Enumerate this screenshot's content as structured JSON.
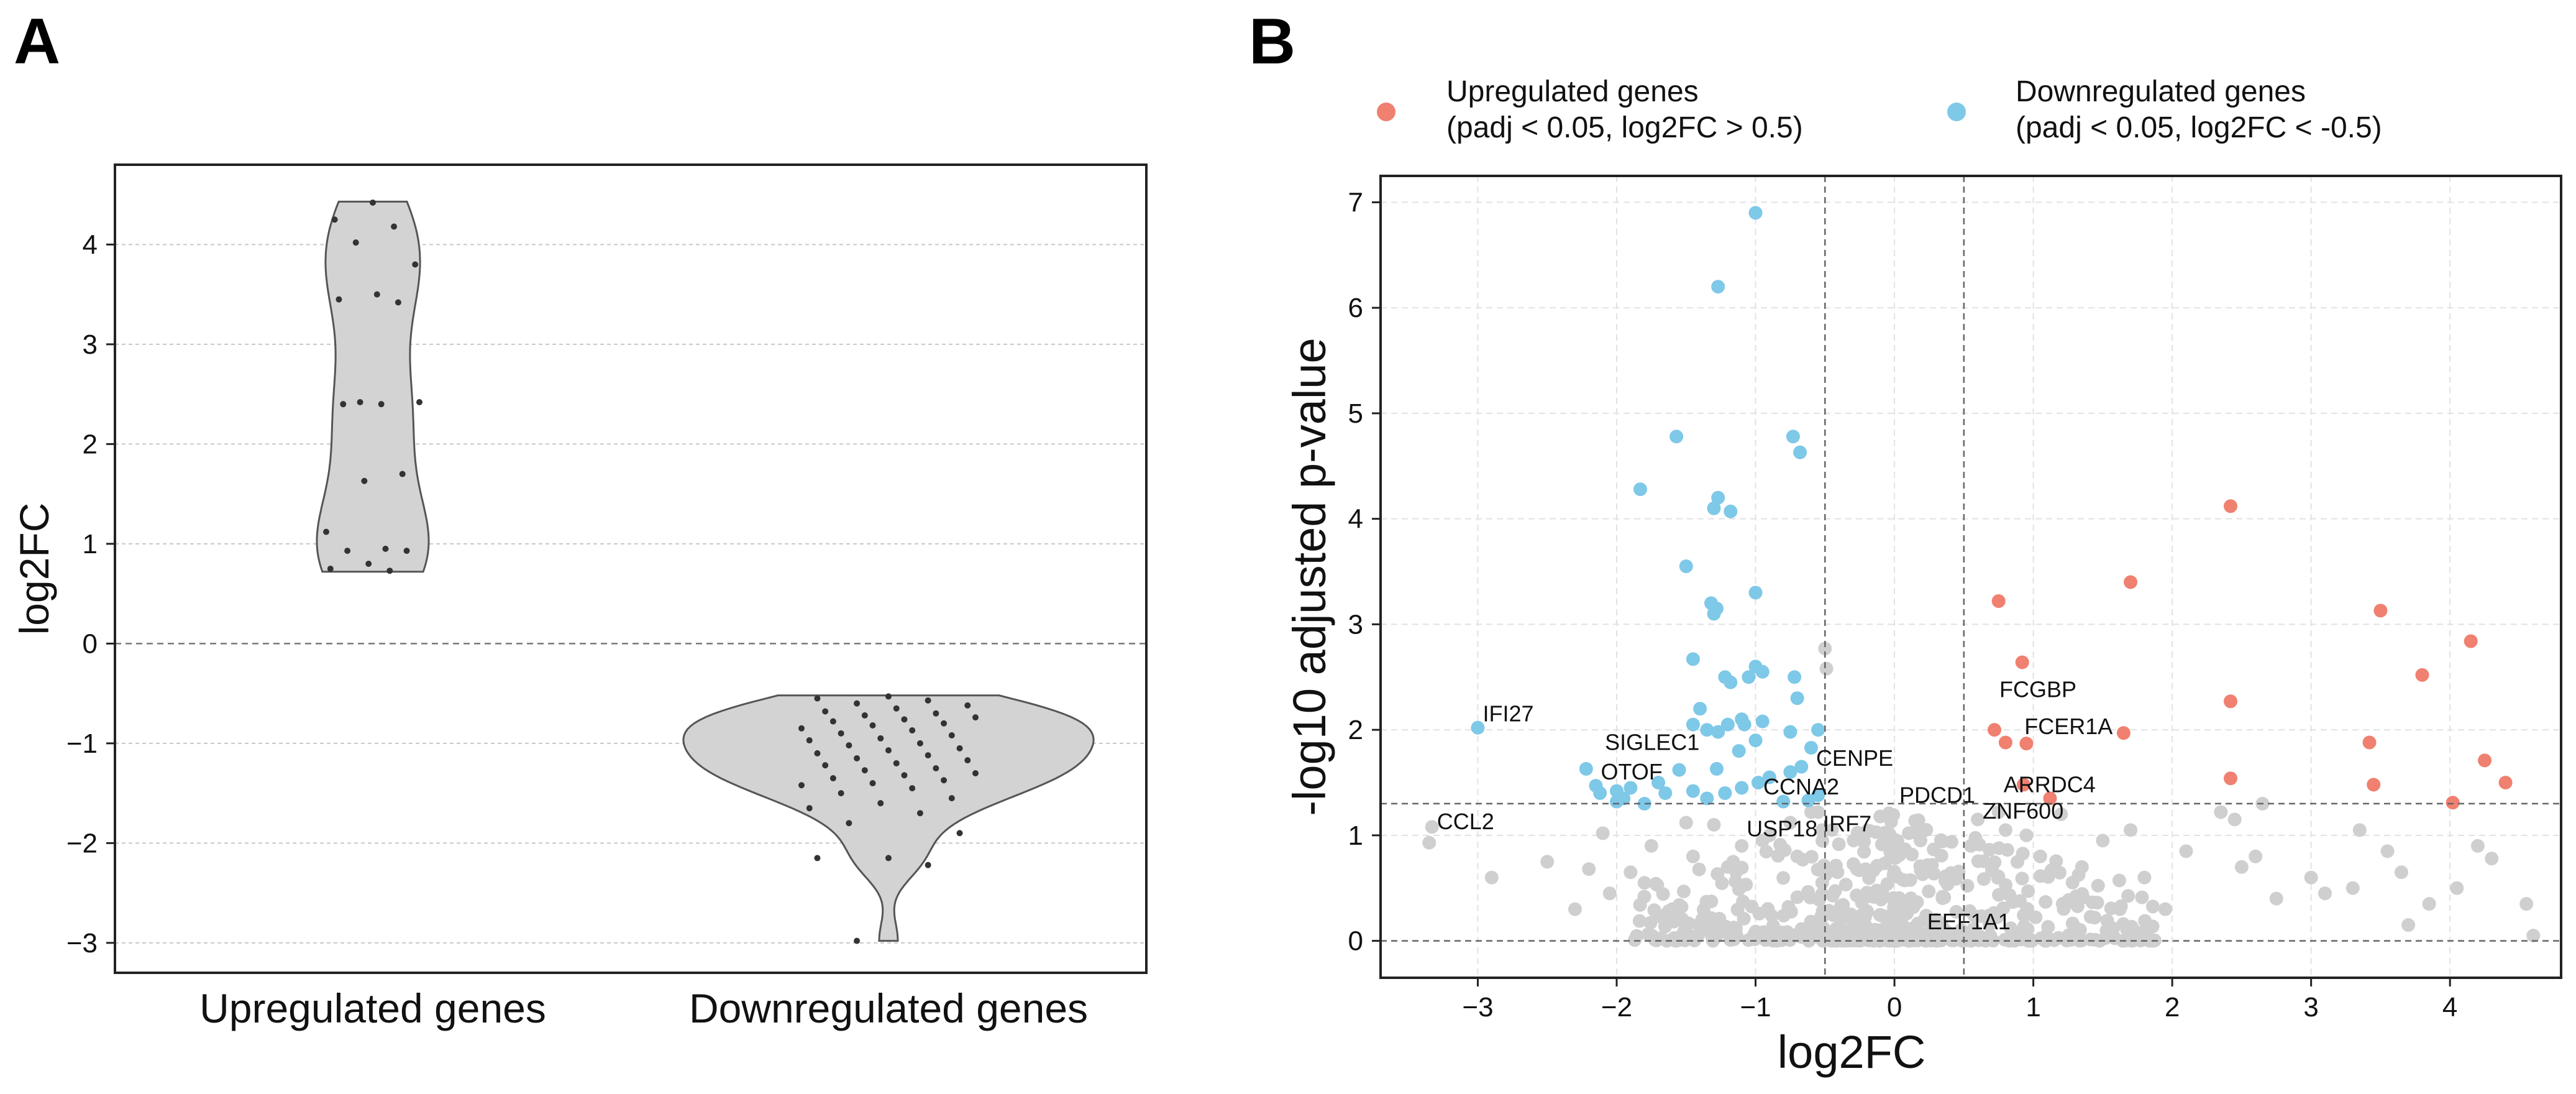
{
  "panels": {
    "a_label": "A",
    "b_label": "B"
  },
  "colors": {
    "up": "#f08070",
    "down": "#7ec8e8",
    "ns": "#cfcfcf",
    "violin": "#d3d3d3",
    "jitter": "#333333"
  },
  "chart_data": [
    {
      "type": "violin",
      "ylabel": "log2FC",
      "ylim": [
        -3.3,
        4.8
      ],
      "yticks": [
        4,
        3,
        2,
        1,
        0,
        -1,
        -2,
        -3
      ],
      "ytick_labels": [
        "4",
        "3",
        "2",
        "1",
        "0",
        "−1",
        "−2",
        "−3"
      ],
      "categories": [
        "Upregulated genes",
        "Downregulated genes"
      ],
      "reference_line": 0,
      "series": [
        {
          "name": "Upregulated genes",
          "values": [
            4.42,
            4.25,
            4.18,
            4.02,
            3.8,
            3.5,
            3.45,
            3.42,
            2.42,
            2.42,
            2.4,
            2.4,
            1.7,
            1.63,
            1.12,
            0.95,
            0.93,
            0.93,
            0.8,
            0.75,
            0.73
          ],
          "range": [
            0.72,
            4.43
          ]
        },
        {
          "name": "Downregulated genes",
          "values": [
            -0.53,
            -0.55,
            -0.57,
            -0.6,
            -0.62,
            -0.65,
            -0.68,
            -0.7,
            -0.72,
            -0.74,
            -0.76,
            -0.78,
            -0.8,
            -0.82,
            -0.85,
            -0.87,
            -0.9,
            -0.92,
            -0.95,
            -0.97,
            -1.0,
            -1.02,
            -1.05,
            -1.07,
            -1.1,
            -1.12,
            -1.15,
            -1.17,
            -1.2,
            -1.22,
            -1.25,
            -1.27,
            -1.3,
            -1.32,
            -1.35,
            -1.37,
            -1.4,
            -1.42,
            -1.45,
            -1.5,
            -1.55,
            -1.6,
            -1.65,
            -1.7,
            -1.8,
            -1.9,
            -2.15,
            -2.15,
            -2.22,
            -2.98
          ],
          "range": [
            -0.52,
            -2.98
          ]
        }
      ]
    },
    {
      "type": "scatter",
      "xlabel": "log2FC",
      "ylabel": "-log10 adjusted p-value",
      "xlim": [
        -3.7,
        4.8
      ],
      "ylim": [
        -0.35,
        7.25
      ],
      "xticks": [
        -3,
        -2,
        -1,
        0,
        1,
        2,
        3,
        4
      ],
      "xtick_labels": [
        "−3",
        "−2",
        "−1",
        "0",
        "1",
        "2",
        "3",
        "4"
      ],
      "yticks": [
        0,
        1,
        2,
        3,
        4,
        5,
        6,
        7
      ],
      "ytick_labels": [
        "0",
        "1",
        "2",
        "3",
        "4",
        "5",
        "6",
        "7"
      ],
      "vlines": [
        -0.5,
        0.5
      ],
      "hlines": [
        0,
        1.3
      ],
      "legend": [
        {
          "name": "Upregulated genes",
          "desc": "(padj < 0.05, log2FC > 0.5)"
        },
        {
          "name": "Downregulated genes",
          "desc": "(padj < 0.05, log2FC < -0.5)"
        }
      ],
      "up_points": [
        [
          2.42,
          4.12
        ],
        [
          1.7,
          3.4
        ],
        [
          0.75,
          3.22
        ],
        [
          3.5,
          3.13
        ],
        [
          4.15,
          2.84
        ],
        [
          0.92,
          2.64
        ],
        [
          3.8,
          2.52
        ],
        [
          2.42,
          2.27
        ],
        [
          0.72,
          2.0
        ],
        [
          1.65,
          1.97
        ],
        [
          0.8,
          1.88
        ],
        [
          0.95,
          1.87
        ],
        [
          3.42,
          1.88
        ],
        [
          4.25,
          1.71
        ],
        [
          2.42,
          1.54
        ],
        [
          0.93,
          1.48
        ],
        [
          3.45,
          1.48
        ],
        [
          4.4,
          1.5
        ],
        [
          1.12,
          1.35
        ],
        [
          4.02,
          1.31
        ]
      ],
      "down_points": [
        [
          -1.0,
          6.9
        ],
        [
          -1.27,
          6.2
        ],
        [
          -1.57,
          4.78
        ],
        [
          -0.73,
          4.78
        ],
        [
          -0.68,
          4.63
        ],
        [
          -1.83,
          4.28
        ],
        [
          -1.27,
          4.2
        ],
        [
          -1.3,
          4.1
        ],
        [
          -1.18,
          4.07
        ],
        [
          -1.5,
          3.55
        ],
        [
          -1.0,
          3.3
        ],
        [
          -1.32,
          3.2
        ],
        [
          -1.28,
          3.15
        ],
        [
          -1.3,
          3.1
        ],
        [
          -1.45,
          2.67
        ],
        [
          -1.0,
          2.6
        ],
        [
          -0.95,
          2.55
        ],
        [
          -1.05,
          2.5
        ],
        [
          -1.22,
          2.5
        ],
        [
          -1.18,
          2.45
        ],
        [
          -0.72,
          2.5
        ],
        [
          -0.7,
          2.3
        ],
        [
          -1.4,
          2.2
        ],
        [
          -1.1,
          2.1
        ],
        [
          -1.2,
          2.05
        ],
        [
          -1.45,
          2.05
        ],
        [
          -1.35,
          2.0
        ],
        [
          -1.27,
          1.98
        ],
        [
          -1.08,
          2.05
        ],
        [
          -0.95,
          2.08
        ],
        [
          -0.75,
          1.98
        ],
        [
          -0.55,
          2.0
        ],
        [
          -1.0,
          1.9
        ],
        [
          -1.12,
          1.8
        ],
        [
          -1.28,
          1.63
        ],
        [
          -1.55,
          1.62
        ],
        [
          -0.6,
          1.83
        ],
        [
          -0.67,
          1.65
        ],
        [
          -0.75,
          1.6
        ],
        [
          -0.9,
          1.55
        ],
        [
          -0.98,
          1.5
        ],
        [
          -1.1,
          1.45
        ],
        [
          -1.22,
          1.4
        ],
        [
          -1.35,
          1.35
        ],
        [
          -1.45,
          1.42
        ],
        [
          -1.65,
          1.4
        ],
        [
          -1.7,
          1.5
        ],
        [
          -1.9,
          1.45
        ],
        [
          -1.95,
          1.35
        ],
        [
          -2.0,
          1.42
        ],
        [
          -2.12,
          1.4
        ],
        [
          -2.15,
          1.47
        ],
        [
          -2.22,
          1.63
        ],
        [
          -1.8,
          1.3
        ],
        [
          -2.0,
          1.32
        ],
        [
          -0.8,
          1.32
        ],
        [
          -0.62,
          1.33
        ],
        [
          -0.55,
          1.38
        ],
        [
          -3.0,
          2.02
        ]
      ],
      "ns_points": [
        [
          -3.33,
          1.08
        ],
        [
          -3.35,
          0.93
        ],
        [
          -2.9,
          0.6
        ],
        [
          -2.5,
          0.75
        ],
        [
          -2.2,
          0.68
        ],
        [
          -2.05,
          0.45
        ],
        [
          -1.8,
          0.55
        ],
        [
          -1.6,
          0.3
        ],
        [
          -1.3,
          1.1
        ],
        [
          -1.1,
          0.9
        ],
        [
          -0.9,
          1.0
        ],
        [
          -0.7,
          0.8
        ],
        [
          -0.55,
          1.22
        ],
        [
          -0.52,
          1.05
        ],
        [
          -0.5,
          2.77
        ],
        [
          -0.49,
          2.58
        ],
        [
          -0.6,
          1.22
        ],
        [
          -0.75,
          1.12
        ],
        [
          -0.95,
          0.95
        ],
        [
          -1.2,
          0.7
        ],
        [
          -1.45,
          0.8
        ],
        [
          -1.5,
          1.12
        ],
        [
          -1.75,
          0.9
        ],
        [
          -1.9,
          0.65
        ],
        [
          -2.1,
          1.02
        ],
        [
          -2.3,
          0.3
        ],
        [
          -0.52,
          0.55
        ],
        [
          -0.45,
          1.05
        ],
        [
          0.1,
          0.05
        ],
        [
          0.3,
          0.2
        ],
        [
          0.55,
          0.9
        ],
        [
          0.6,
          1.15
        ],
        [
          0.75,
          1.22
        ],
        [
          0.8,
          1.05
        ],
        [
          0.95,
          1.0
        ],
        [
          1.05,
          0.8
        ],
        [
          1.2,
          1.2
        ],
        [
          1.35,
          0.7
        ],
        [
          1.5,
          0.95
        ],
        [
          1.7,
          1.05
        ],
        [
          1.8,
          0.6
        ],
        [
          1.95,
          0.3
        ],
        [
          2.1,
          0.85
        ],
        [
          2.35,
          1.22
        ],
        [
          2.45,
          1.15
        ],
        [
          2.5,
          0.7
        ],
        [
          2.6,
          0.8
        ],
        [
          2.75,
          0.4
        ],
        [
          3.0,
          0.6
        ],
        [
          3.1,
          0.45
        ],
        [
          3.3,
          0.5
        ],
        [
          3.55,
          0.85
        ],
        [
          3.7,
          0.15
        ],
        [
          3.85,
          0.35
        ],
        [
          4.05,
          0.5
        ],
        [
          4.3,
          0.78
        ],
        [
          4.55,
          0.35
        ],
        [
          4.6,
          0.05
        ],
        [
          2.65,
          1.3
        ],
        [
          3.35,
          1.05
        ],
        [
          3.65,
          0.65
        ],
        [
          4.2,
          0.9
        ]
      ],
      "annotations": [
        {
          "label": "IFI27",
          "x": -3.0,
          "y": 2.02
        },
        {
          "label": "SIGLEC1",
          "x": -2.12,
          "y": 1.75
        },
        {
          "label": "OTOF",
          "x": -2.15,
          "y": 1.47
        },
        {
          "label": "CCL2",
          "x": -3.33,
          "y": 1.0
        },
        {
          "label": "CENPE",
          "x": -0.6,
          "y": 1.6
        },
        {
          "label": "CCNA2",
          "x": -0.98,
          "y": 1.33
        },
        {
          "label": "USP18",
          "x": -1.1,
          "y": 0.93
        },
        {
          "label": "IRF7",
          "x": -0.55,
          "y": 0.98
        },
        {
          "label": "PDCD1",
          "x": 0.0,
          "y": 1.25
        },
        {
          "label": "EEF1A1",
          "x": 0.2,
          "y": 0.05
        },
        {
          "label": "FCGBP",
          "x": 0.72,
          "y": 2.25
        },
        {
          "label": "FCER1A",
          "x": 0.9,
          "y": 1.9
        },
        {
          "label": "ARRDC4",
          "x": 0.75,
          "y": 1.35
        },
        {
          "label": "ZNF600",
          "x": 0.6,
          "y": 1.1
        }
      ]
    }
  ]
}
